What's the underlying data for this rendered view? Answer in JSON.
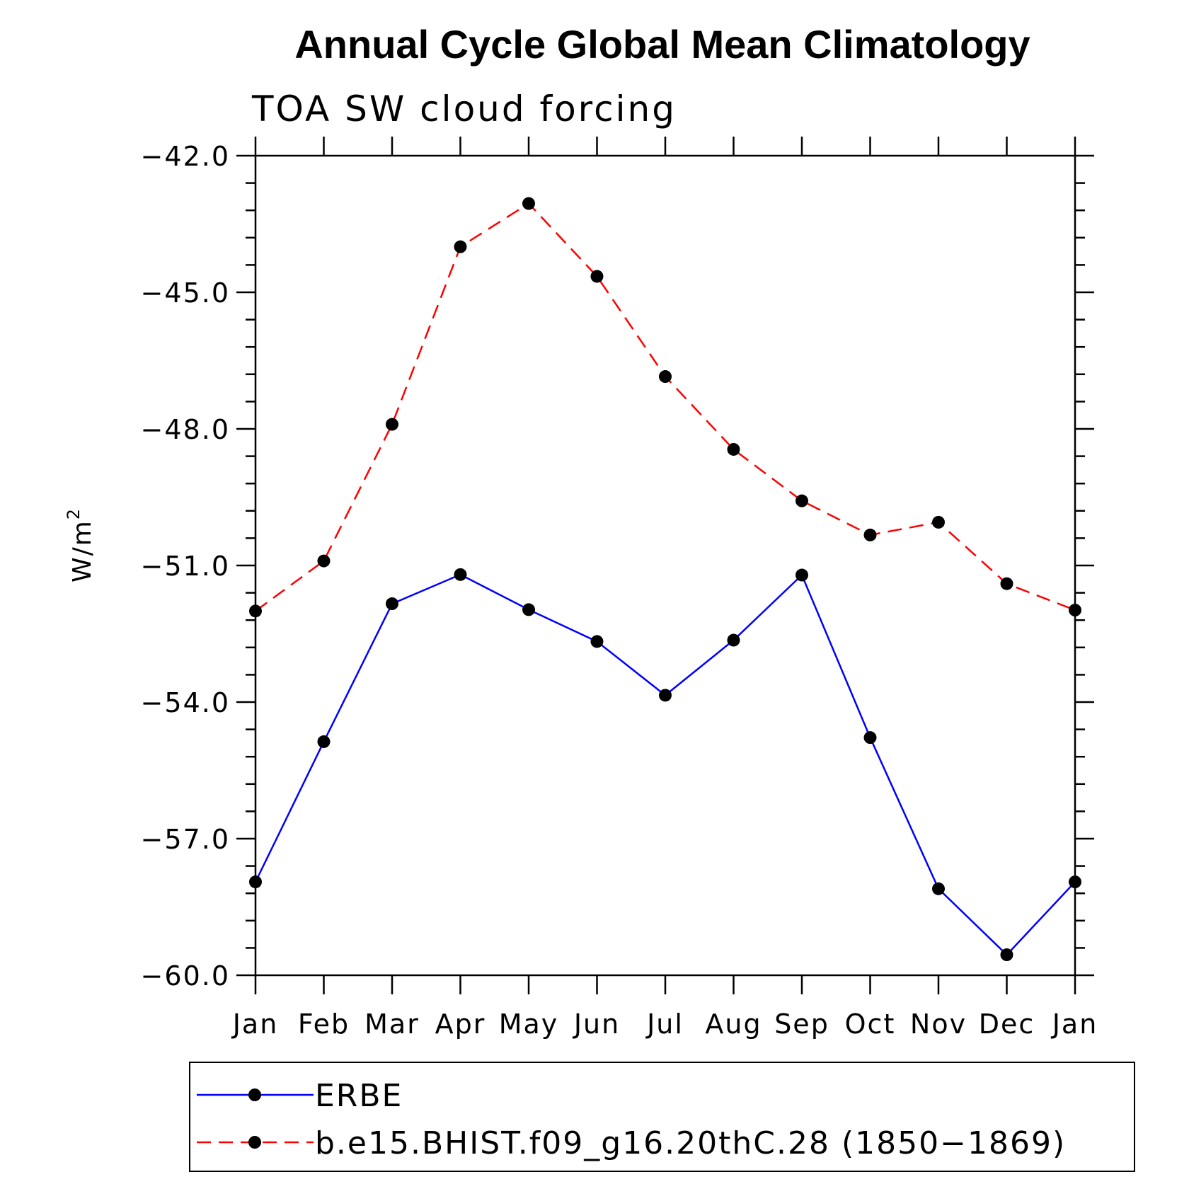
{
  "chart_data": {
    "type": "line",
    "title": "Annual Cycle Global Mean Climatology",
    "subtitle": "TOA SW cloud forcing",
    "xlabel": "",
    "ylabel": "W/m",
    "ylabel_superscript": "2",
    "categories": [
      "Jan",
      "Feb",
      "Mar",
      "Apr",
      "May",
      "Jun",
      "Jul",
      "Aug",
      "Sep",
      "Oct",
      "Nov",
      "Dec",
      "Jan"
    ],
    "ylim": [
      -60.0,
      -42.0
    ],
    "yticks": [
      -42.0,
      -45.0,
      -48.0,
      -51.0,
      -54.0,
      -57.0,
      -60.0
    ],
    "ytick_labels": [
      "−42.0",
      "−45.0",
      "−48.0",
      "−51.0",
      "−54.0",
      "−57.0",
      "−60.0"
    ],
    "grid": false,
    "legend_position": "bottom",
    "series": [
      {
        "name": "ERBE",
        "color": "#0000ff",
        "line_style": "solid",
        "marker": "filled-circle",
        "values": [
          -57.95,
          -54.87,
          -51.84,
          -51.2,
          -51.97,
          -52.67,
          -53.85,
          -52.64,
          -51.21,
          -54.78,
          -58.1,
          -59.55,
          -57.95
        ]
      },
      {
        "name": "b.e15.BHIST.f09_g16.20thC.28 (1850−1869)",
        "color": "#ff0000",
        "line_style": "dashed",
        "marker": "filled-circle",
        "values": [
          -52.0,
          -50.9,
          -47.9,
          -44.0,
          -43.05,
          -44.65,
          -46.85,
          -48.45,
          -49.58,
          -50.33,
          -50.05,
          -51.4,
          -51.98
        ]
      }
    ]
  }
}
